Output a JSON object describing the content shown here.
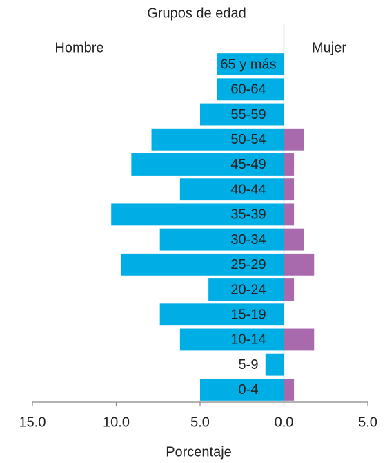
{
  "chart_data": {
    "type": "pyramid",
    "title": "Grupos de edad",
    "xlabel": "Porcentaje",
    "categories": [
      "65 y más",
      "60-64",
      "55-59",
      "50-54",
      "45-49",
      "40-44",
      "35-39",
      "30-34",
      "25-29",
      "20-24",
      "15-19",
      "10-14",
      "5-9",
      "0-4"
    ],
    "series": [
      {
        "name": "Hombre",
        "color": "#00aee6",
        "side": "left",
        "values": [
          4.0,
          4.0,
          5.0,
          7.9,
          9.1,
          6.2,
          10.3,
          7.4,
          9.7,
          4.5,
          7.4,
          6.2,
          1.1,
          5.0
        ]
      },
      {
        "name": "Mujer",
        "color": "#a86aad",
        "side": "right",
        "values": [
          0,
          0,
          0,
          1.2,
          0.6,
          0.6,
          0.6,
          1.2,
          1.8,
          0.6,
          0,
          1.8,
          0,
          0.6
        ]
      }
    ],
    "xlim": [
      -15,
      5
    ],
    "xticks": [
      {
        "value": -15,
        "label": "15.0"
      },
      {
        "value": -10,
        "label": "10.0"
      },
      {
        "value": -5,
        "label": "5.0"
      },
      {
        "value": 0,
        "label": "0.0"
      },
      {
        "value": 5,
        "label": "5.0"
      }
    ]
  }
}
